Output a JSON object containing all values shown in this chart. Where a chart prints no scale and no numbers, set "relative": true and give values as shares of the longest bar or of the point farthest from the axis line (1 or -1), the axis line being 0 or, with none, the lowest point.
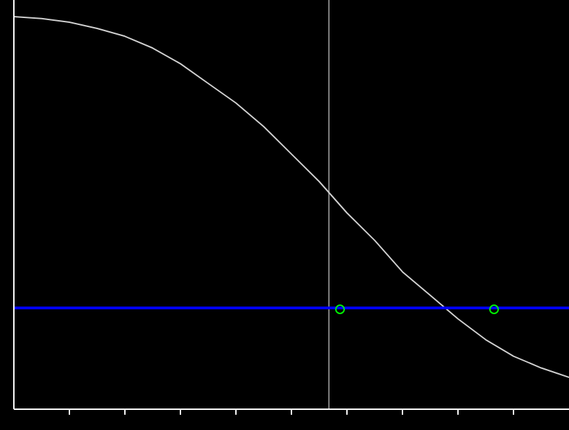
{
  "chart_data": {
    "type": "line",
    "relative": true,
    "categories": [
      null,
      null,
      null,
      null,
      null,
      null,
      null,
      null,
      null,
      null,
      null,
      null,
      null,
      null,
      null,
      null,
      null,
      null,
      null,
      null,
      null
    ],
    "series": [
      {
        "color": "#d0d0d0",
        "values": [
          1,
          0.995,
          0.986,
          0.97,
          0.95,
          0.92,
          0.88,
          0.83,
          0.78,
          0.72,
          0.65,
          0.58,
          0.5,
          0.43,
          0.35,
          0.29,
          0.23,
          0.177,
          0.135,
          0.105,
          0.081
        ]
      },
      {
        "color": "#0000ff",
        "values": [
          0.258,
          0.258,
          0.258,
          0.258,
          0.258,
          0.258,
          0.258,
          0.258,
          0.258,
          0.258,
          0.258,
          0.258,
          0.258,
          0.258,
          0.258,
          0.258,
          0.258,
          0.258,
          0.258,
          0.258,
          0.258
        ]
      }
    ]
  }
}
